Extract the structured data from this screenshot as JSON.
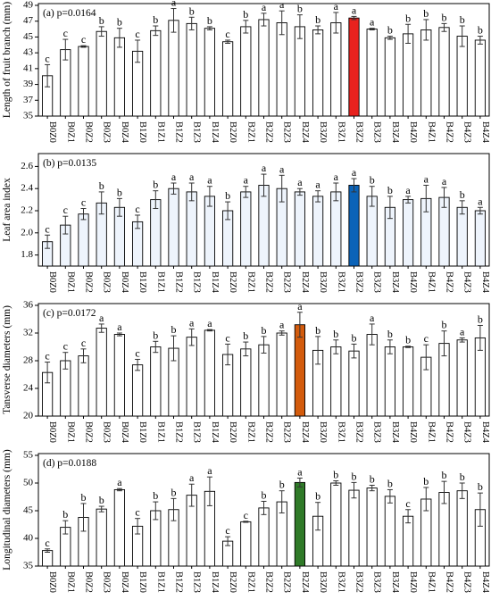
{
  "chart_data": [
    {
      "type": "bar",
      "panel_label": "(a) p=0.0164",
      "ylabel": "Length of fruit branch (mm)",
      "ylim": [
        35,
        49
      ],
      "yticks": [
        35,
        37,
        39,
        41,
        43,
        45,
        47,
        49
      ],
      "bar_color": "#ffffff",
      "highlight": {
        "category": "B3Z2",
        "color": "#e8221e"
      },
      "categories": [
        "B0Z0",
        "B0Z1",
        "B0Z2",
        "B0Z3",
        "B0Z4",
        "B1Z0",
        "B1Z1",
        "B1Z2",
        "B1Z3",
        "B1Z4",
        "B2Z0",
        "B2Z1",
        "B2Z2",
        "B2Z3",
        "B2Z4",
        "B3Z0",
        "B3Z1",
        "B3Z2",
        "B3Z3",
        "B3Z4",
        "B4Z0",
        "B4Z1",
        "B4Z2",
        "B4Z3",
        "B4Z4"
      ],
      "values": [
        40.1,
        43.4,
        43.8,
        45.7,
        44.9,
        43.2,
        45.8,
        47.1,
        46.7,
        46.1,
        44.4,
        46.3,
        47.2,
        46.8,
        46.3,
        45.9,
        46.8,
        47.4,
        46.0,
        44.9,
        45.4,
        45.9,
        46.2,
        45.1,
        44.6
      ],
      "errors": [
        1.4,
        1.3,
        0.1,
        0.6,
        1.2,
        1.4,
        0.6,
        1.5,
        0.8,
        0.2,
        0.2,
        0.8,
        0.8,
        1.5,
        1.5,
        0.5,
        1.3,
        0.2,
        0.1,
        0.2,
        1.2,
        1.3,
        0.5,
        1.3,
        0.5
      ],
      "letters": [
        "c",
        "c",
        "c",
        "b",
        "b",
        "c",
        "b",
        "a",
        "b",
        "b",
        "c",
        "b",
        "a",
        "a",
        "b",
        "b",
        "a",
        "a",
        "a",
        "b",
        "b",
        "b",
        "b",
        "b",
        "b"
      ]
    },
    {
      "type": "bar",
      "panel_label": "(b) p=0.0135",
      "ylabel": "Leaf area index",
      "ylim": [
        1.7,
        2.7
      ],
      "yticks": [
        1.8,
        2.0,
        2.2,
        2.4,
        2.6
      ],
      "bar_color": "#eef4fc",
      "highlight": {
        "category": "B3Z2",
        "color": "#0b63b8"
      },
      "categories": [
        "B0Z0",
        "B0Z1",
        "B0Z2",
        "B0Z3",
        "B0Z4",
        "B1Z0",
        "B1Z1",
        "B1Z2",
        "B1Z3",
        "B1Z4",
        "B2Z0",
        "B2Z1",
        "B2Z2",
        "B2Z3",
        "B2Z4",
        "B3Z0",
        "B3Z1",
        "B3Z2",
        "B3Z3",
        "B3Z4",
        "B4Z0",
        "B4Z1",
        "B4Z2",
        "B4Z3",
        "B4Z4"
      ],
      "values": [
        1.92,
        2.07,
        2.17,
        2.27,
        2.23,
        2.1,
        2.3,
        2.4,
        2.37,
        2.33,
        2.2,
        2.37,
        2.43,
        2.4,
        2.37,
        2.33,
        2.37,
        2.43,
        2.33,
        2.23,
        2.3,
        2.31,
        2.32,
        2.23,
        2.2
      ],
      "errors": [
        0.06,
        0.08,
        0.05,
        0.1,
        0.08,
        0.06,
        0.08,
        0.05,
        0.08,
        0.09,
        0.08,
        0.05,
        0.1,
        0.12,
        0.03,
        0.05,
        0.08,
        0.06,
        0.09,
        0.1,
        0.03,
        0.12,
        0.09,
        0.06,
        0.03
      ],
      "letters": [
        "c",
        "c",
        "c",
        "b",
        "b",
        "c",
        "b",
        "a",
        "a",
        "a",
        "b",
        "a",
        "a",
        "a",
        "a",
        "a",
        "a",
        "a",
        "b",
        "b",
        "a",
        "a",
        "a",
        "b",
        "a"
      ]
    },
    {
      "type": "bar",
      "panel_label": "(c) p=0.0172",
      "ylabel": "Tansverse diameters (mm)",
      "ylim": [
        20,
        36
      ],
      "yticks": [
        20,
        24,
        28,
        32,
        36
      ],
      "bar_color": "#ffffff",
      "highlight": {
        "category": "B2Z4",
        "color": "#d35b0c"
      },
      "categories": [
        "B0Z0",
        "B0Z1",
        "B0Z2",
        "B0Z3",
        "B0Z4",
        "B1Z0",
        "B1Z1",
        "B1Z2",
        "B1Z3",
        "B1Z4",
        "B2Z0",
        "B2Z1",
        "B2Z2",
        "B2Z3",
        "B2Z4",
        "B3Z0",
        "B3Z1",
        "B3Z2",
        "B3Z3",
        "B3Z4",
        "B4Z0",
        "B4Z1",
        "B4Z2",
        "B4Z3",
        "B4Z4"
      ],
      "values": [
        26.3,
        28.0,
        28.7,
        32.7,
        31.8,
        27.4,
        30.0,
        29.8,
        31.4,
        32.4,
        28.9,
        29.7,
        30.3,
        32.0,
        33.2,
        29.5,
        30.0,
        29.4,
        31.8,
        30.0,
        30.0,
        28.5,
        30.5,
        31.0,
        31.3
      ],
      "errors": [
        1.5,
        1.2,
        1.0,
        0.6,
        0.2,
        0.8,
        0.8,
        1.8,
        1.2,
        0.1,
        1.5,
        1.0,
        1.2,
        0.3,
        1.8,
        2.0,
        1.0,
        1.0,
        1.5,
        1.0,
        0.1,
        1.8,
        1.8,
        0.3,
        1.8
      ],
      "letters": [
        "c",
        "c",
        "c",
        "a",
        "a",
        "c",
        "b",
        "b",
        "a",
        "a",
        "c",
        "b",
        "b",
        "a",
        "a",
        "b",
        "b",
        "b",
        "a",
        "b",
        "b",
        "c",
        "b",
        "a",
        "b"
      ]
    },
    {
      "type": "bar",
      "panel_label": "(d) p=0.0188",
      "ylabel": "Longitudinal diameters (mm)",
      "ylim": [
        35,
        55
      ],
      "yticks": [
        35,
        40,
        45,
        50,
        55
      ],
      "bar_color": "#ffffff",
      "highlight": {
        "category": "B2Z4",
        "color": "#2f7a28"
      },
      "categories": [
        "B0Z0",
        "B0Z1",
        "B0Z2",
        "B0Z3",
        "B0Z4",
        "B1Z0",
        "B1Z1",
        "B1Z2",
        "B1Z3",
        "B1Z4",
        "B2Z0",
        "B2Z1",
        "B2Z2",
        "B2Z3",
        "B2Z4",
        "B3Z0",
        "B3Z1",
        "B3Z2",
        "B3Z3",
        "B3Z4",
        "B4Z0",
        "B4Z1",
        "B4Z2",
        "B4Z3",
        "B4Z4"
      ],
      "values": [
        37.8,
        42.0,
        43.8,
        45.3,
        48.8,
        42.2,
        45.0,
        45.2,
        47.8,
        48.5,
        39.5,
        43.0,
        45.5,
        46.6,
        50.1,
        44.0,
        50.0,
        48.7,
        49.1,
        47.6,
        44.0,
        47.1,
        48.3,
        48.6,
        45.2
      ],
      "errors": [
        0.3,
        1.2,
        2.5,
        0.5,
        0.2,
        1.4,
        1.6,
        2.0,
        2.0,
        2.6,
        0.8,
        0.1,
        1.2,
        2.0,
        0.8,
        2.5,
        0.4,
        1.4,
        0.5,
        1.2,
        1.2,
        2.1,
        2.0,
        1.4,
        3.0
      ],
      "letters": [
        "c",
        "b",
        "b",
        "b",
        "a",
        "c",
        "b",
        "b",
        "a",
        "a",
        "c",
        "c",
        "b",
        "b",
        "a",
        "b",
        "b",
        "b",
        "b",
        "b",
        "c",
        "b",
        "b",
        "b",
        "b"
      ]
    }
  ]
}
